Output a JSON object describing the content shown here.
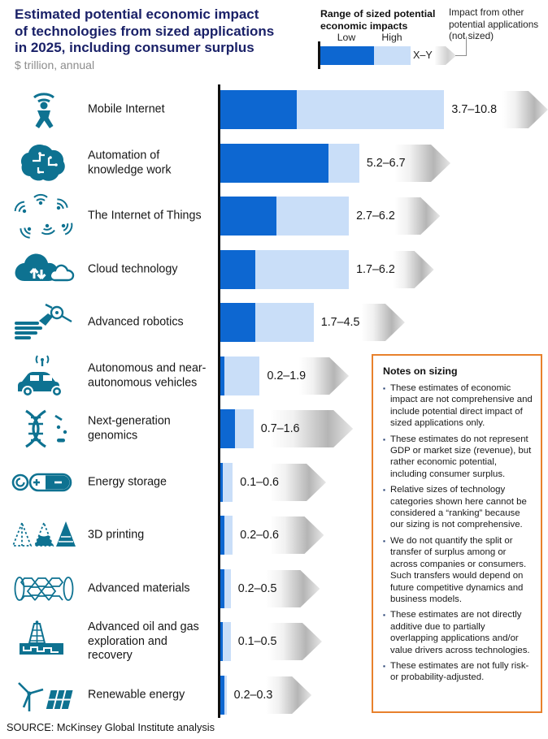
{
  "header": {
    "title_lines": [
      "Estimated potential economic impact",
      "of technologies from sized applications",
      "in 2025, including consumer surplus"
    ],
    "subtitle": "$ trillion, annual"
  },
  "legend": {
    "heading_lines": [
      "Range of sized potential",
      "economic impacts"
    ],
    "low_label": "Low",
    "high_label": "High",
    "range_example": "X–Y",
    "other_lines": [
      "Impact from other",
      "potential applications",
      "(not sized)"
    ]
  },
  "chart_data": {
    "type": "bar",
    "orientation": "horizontal",
    "unit": "$ trillion, annual",
    "value_axis_range": [
      0,
      15.8
    ],
    "grid": false,
    "series_legend": [
      "Low",
      "High"
    ],
    "rows": [
      {
        "label": "Mobile Internet",
        "icon": "mobile-internet-icon",
        "low": 3.7,
        "high": 10.8,
        "range_label": "3.7–10.8",
        "arrow_start": 13.6,
        "arrow_end": 15.8
      },
      {
        "label": "Automation of knowledge work",
        "icon": "knowledge-automation-icon",
        "low": 5.2,
        "high": 6.7,
        "range_label": "5.2–6.7",
        "arrow_start": 8.4,
        "arrow_end": 11.1
      },
      {
        "label": "The Internet of Things",
        "icon": "internet-of-things-icon",
        "low": 2.7,
        "high": 6.2,
        "range_label": "2.7–6.2",
        "arrow_start": 8.4,
        "arrow_end": 10.6
      },
      {
        "label": "Cloud technology",
        "icon": "cloud-technology-icon",
        "low": 1.7,
        "high": 6.2,
        "range_label": "1.7–6.2",
        "arrow_start": 8.3,
        "arrow_end": 10.3
      },
      {
        "label": "Advanced robotics",
        "icon": "advanced-robotics-icon",
        "low": 1.7,
        "high": 4.5,
        "range_label": "1.7–4.5",
        "arrow_start": 6.8,
        "arrow_end": 8.9
      },
      {
        "label": "Autonomous and near-autonomous vehicles",
        "icon": "autonomous-vehicles-icon",
        "low": 0.2,
        "high": 1.9,
        "range_label": "0.2–1.9",
        "arrow_start": 3.8,
        "arrow_end": 6.2
      },
      {
        "label": "Next-generation genomics",
        "icon": "genomics-icon",
        "low": 0.7,
        "high": 1.6,
        "range_label": "0.7–1.6",
        "arrow_start": 2.4,
        "arrow_end": 6.4
      },
      {
        "label": "Energy storage",
        "icon": "energy-storage-icon",
        "low": 0.1,
        "high": 0.6,
        "range_label": "0.1–0.6",
        "arrow_start": 2.4,
        "arrow_end": 5.1
      },
      {
        "label": "3D printing",
        "icon": "printing-3d-icon",
        "low": 0.2,
        "high": 0.6,
        "range_label": "0.2–0.6",
        "arrow_start": 2.4,
        "arrow_end": 5.0
      },
      {
        "label": "Advanced materials",
        "icon": "advanced-materials-icon",
        "low": 0.2,
        "high": 0.5,
        "range_label": "0.2–0.5",
        "arrow_start": 2.2,
        "arrow_end": 4.8
      },
      {
        "label": "Advanced oil and gas exploration and recovery",
        "icon": "oil-gas-icon",
        "low": 0.1,
        "high": 0.5,
        "range_label": "0.1–0.5",
        "arrow_start": 2.3,
        "arrow_end": 4.9
      },
      {
        "label": "Renewable energy",
        "icon": "renewable-energy-icon",
        "low": 0.2,
        "high": 0.3,
        "range_label": "0.2–0.3",
        "arrow_start": 2.2,
        "arrow_end": 4.4
      }
    ]
  },
  "notes": {
    "title": "Notes on sizing",
    "bullets": [
      "These estimates of economic impact are not comprehensive and include potential direct impact of sized applications only.",
      "These estimates do not represent GDP or market size (revenue), but rather economic potential, including consumer surplus.",
      "Relative sizes of technology categories shown here cannot be considered a “ranking” because our sizing is not comprehensive.",
      "We do not quantify the split or transfer of surplus among or across companies or consumers. Such transfers would depend on future competitive dynamics and business models.",
      "These estimates are not directly additive due to partially overlapping applications and/or value drivers across technologies.",
      "These estimates are not fully risk- or probability-adjusted."
    ]
  },
  "source": "SOURCE: McKinsey Global Institute analysis",
  "colors": {
    "low_bar": "#0d67d1",
    "high_bar": "#c9def8",
    "icon_teal": "#0e7291",
    "title_navy": "#1a2168",
    "notes_border_orange": "#e8812c",
    "arrow_gray": "#b5b5b5",
    "subtitle_gray": "#8c8c8c"
  }
}
